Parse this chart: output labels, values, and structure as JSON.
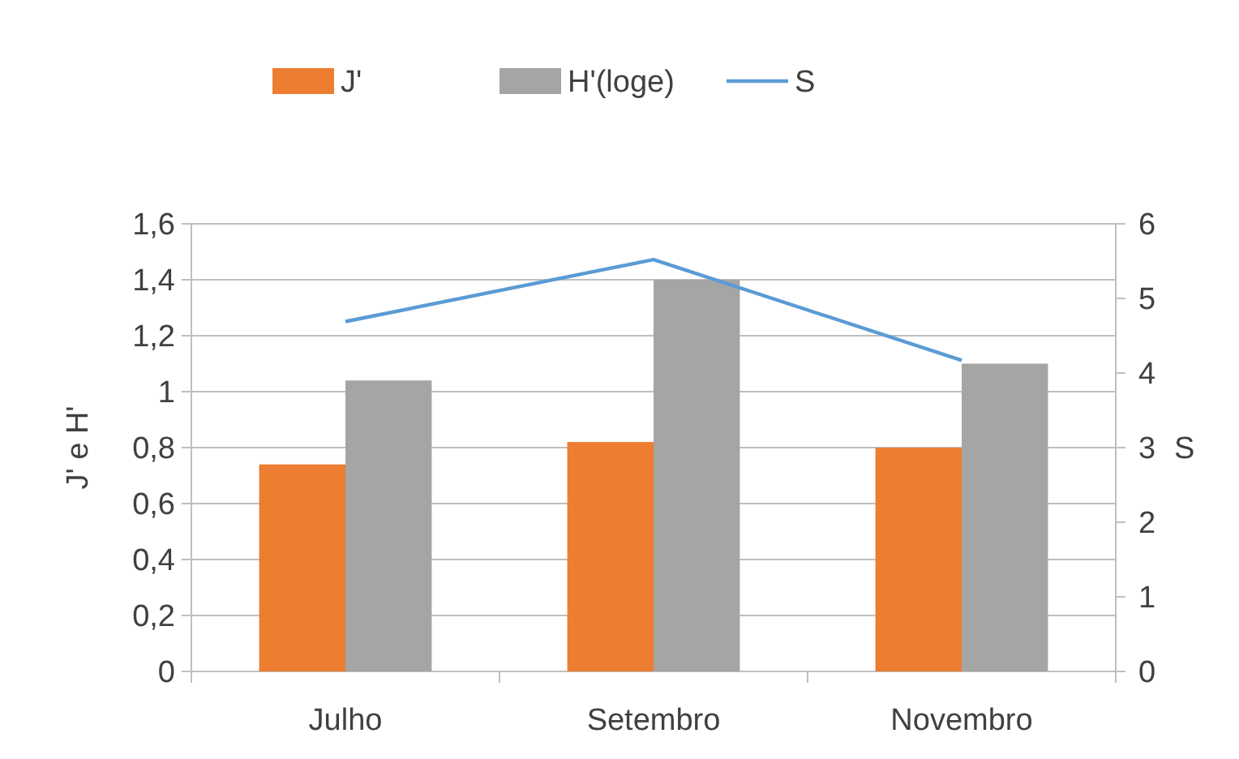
{
  "chart_data": {
    "type": "bar",
    "categories": [
      "Julho",
      "Setembro",
      "Novembro"
    ],
    "series": [
      {
        "name": "J'",
        "color": "#ed7d31",
        "values": [
          0.74,
          0.82,
          0.8
        ]
      },
      {
        "name": "H'(loge)",
        "color": "#a5a5a5",
        "values": [
          1.04,
          1.4,
          1.1
        ]
      },
      {
        "name": "S",
        "type": "line",
        "axis": "y2",
        "color": "#5b9bd5",
        "values": [
          4.69,
          5.52,
          4.17
        ]
      }
    ],
    "ylabel": "J' e H'",
    "y2label": "S",
    "ylim": [
      0,
      1.6
    ],
    "yticks": [
      {
        "value": 0,
        "label": "0"
      },
      {
        "value": 0.2,
        "label": "0,2"
      },
      {
        "value": 0.4,
        "label": "0,4"
      },
      {
        "value": 0.6,
        "label": "0,6"
      },
      {
        "value": 0.8,
        "label": "0,8"
      },
      {
        "value": 1,
        "label": "1"
      },
      {
        "value": 1.2,
        "label": "1,2"
      },
      {
        "value": 1.4,
        "label": "1,4"
      },
      {
        "value": 1.6,
        "label": "1,6"
      }
    ],
    "y2lim": [
      0,
      6
    ],
    "y2ticks": [
      0,
      1,
      2,
      3,
      4,
      5,
      6
    ],
    "grid": "y",
    "legend": "top",
    "marker": "none"
  }
}
